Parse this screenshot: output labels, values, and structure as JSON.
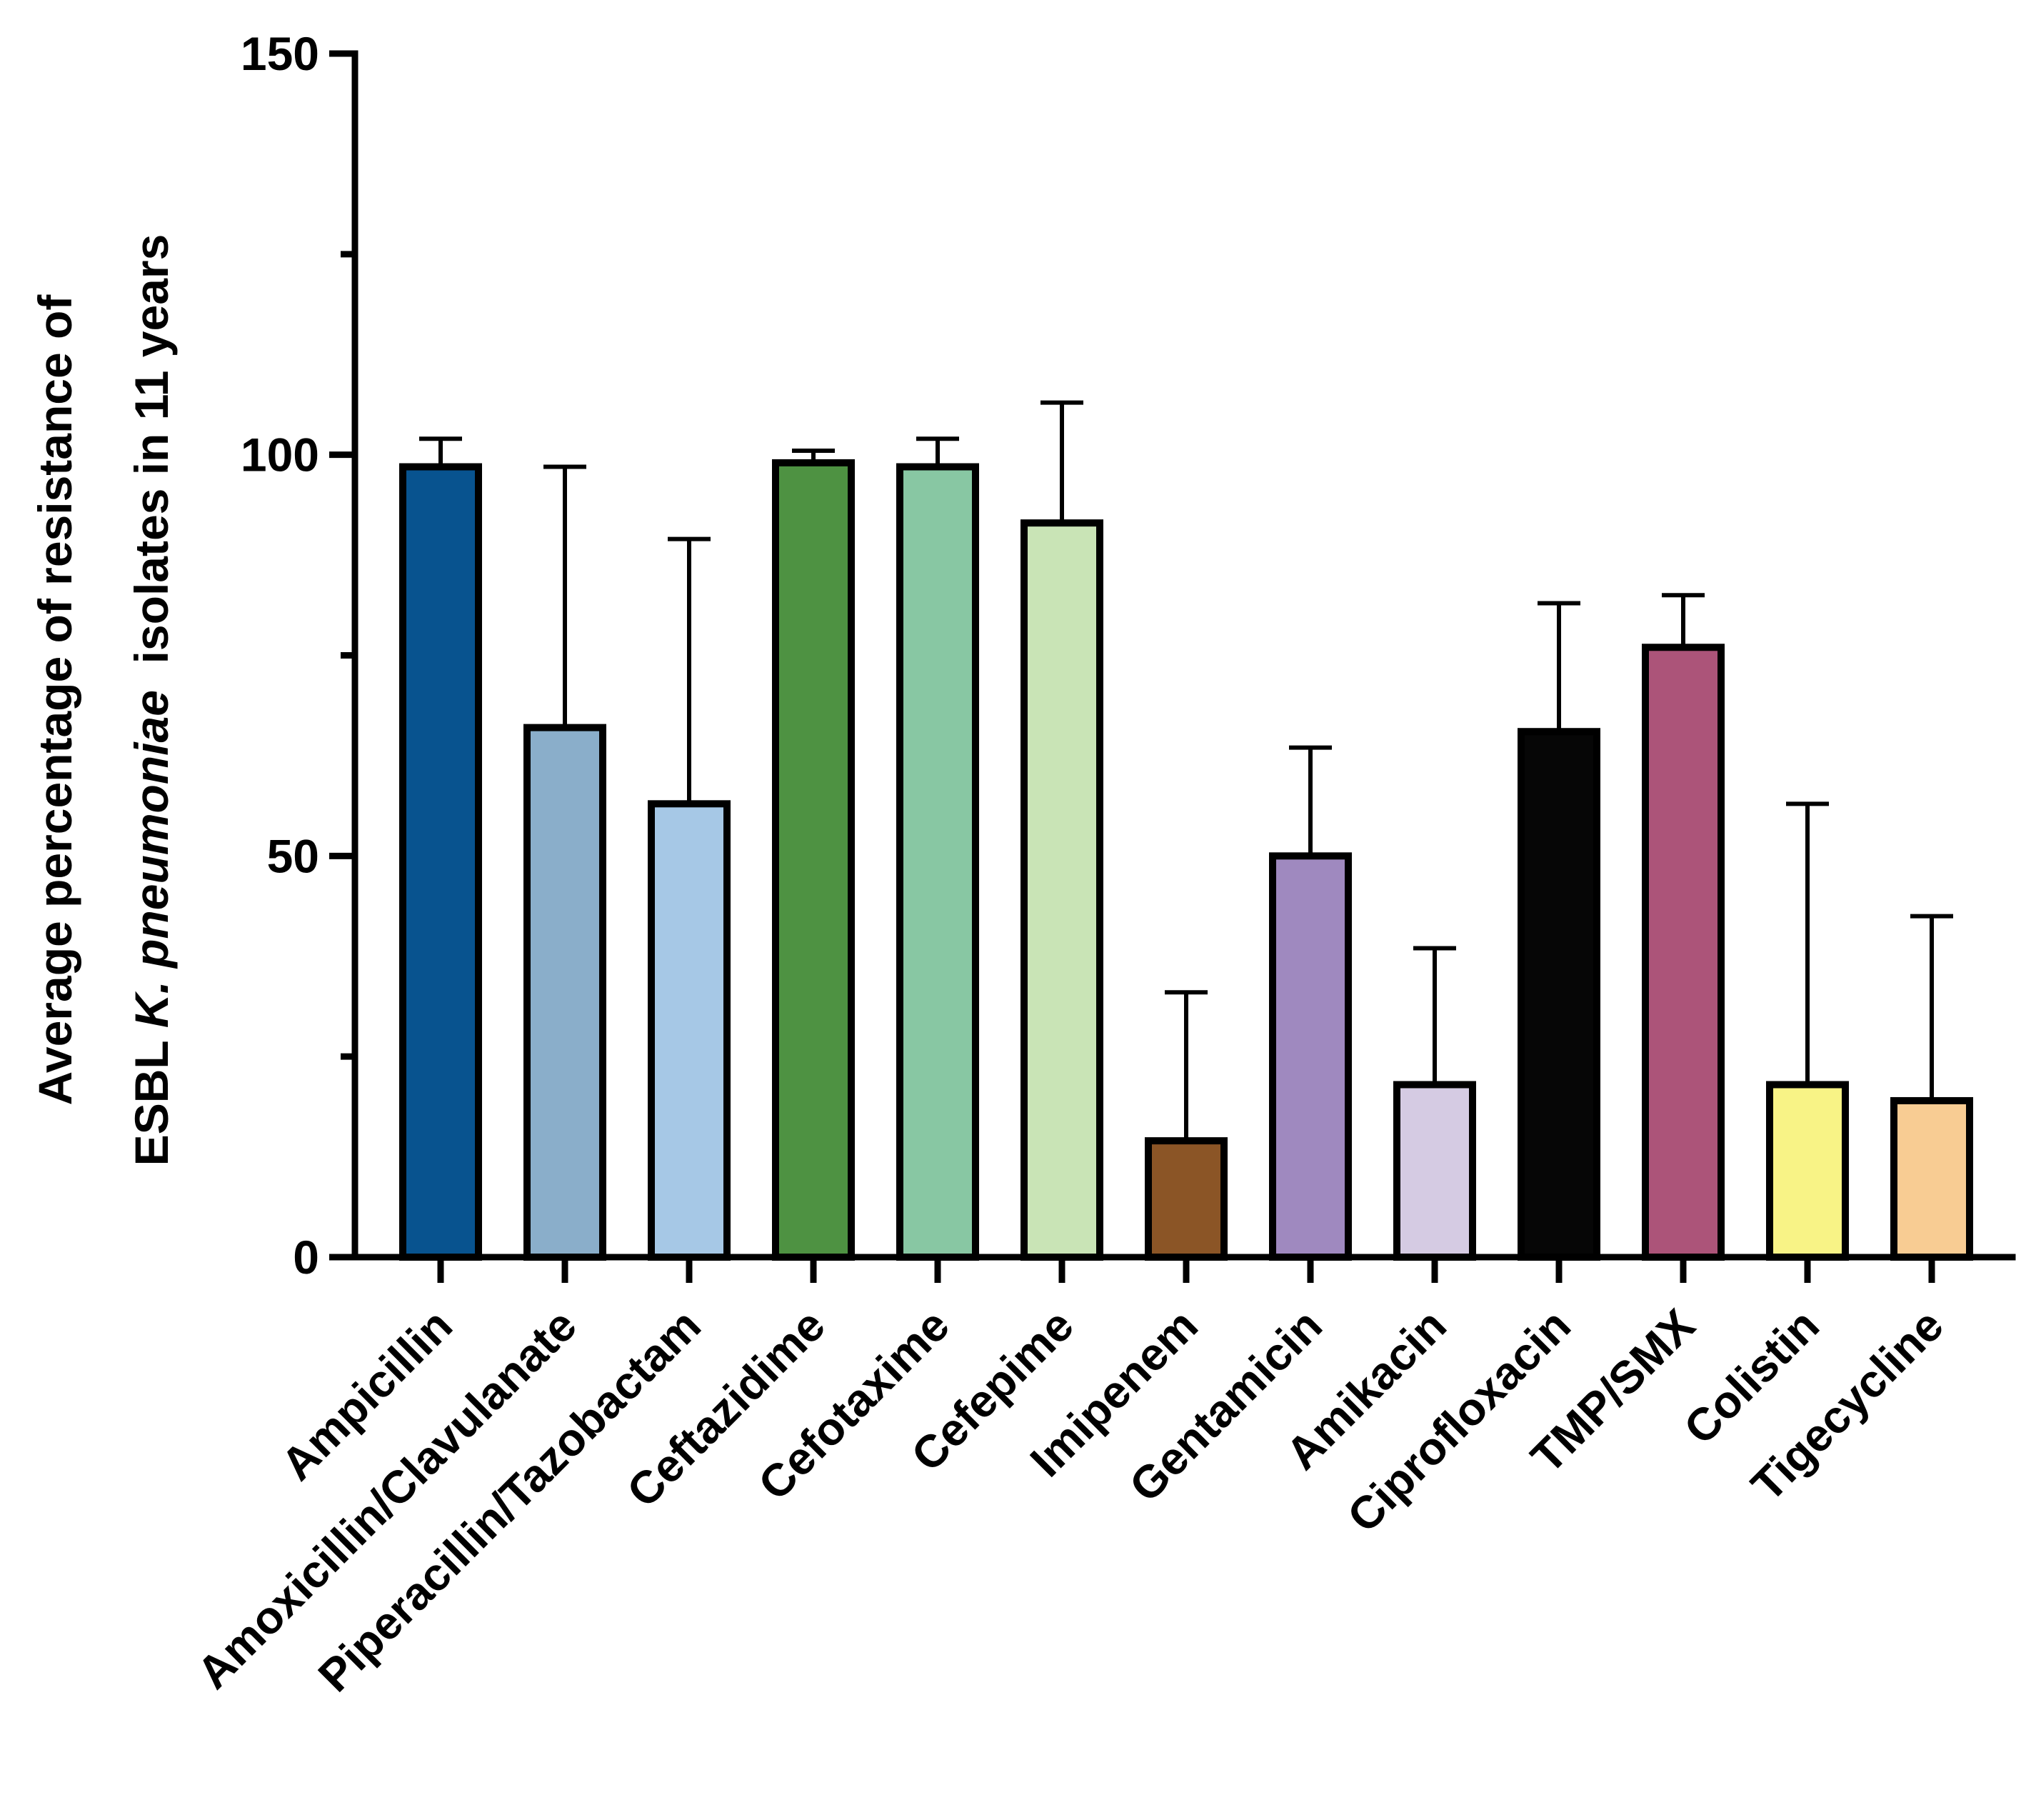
{
  "chart_data": {
    "type": "bar",
    "title": "",
    "xlabel": "",
    "ylabel": {
      "line1": "Average percentage of resistance of",
      "line2_prefix": "ESBL ",
      "line2_italic": "K. pneumoniae",
      "line2_suffix": "  isolates in 11 years"
    },
    "ylim": [
      0,
      150
    ],
    "yticks": [
      {
        "value": 0,
        "label": "0"
      },
      {
        "value": 50,
        "label": "50"
      },
      {
        "value": 100,
        "label": "100"
      },
      {
        "value": 150,
        "label": "150"
      }
    ],
    "minor_yticks": [
      25,
      75,
      125
    ],
    "grid": false,
    "legend": "none",
    "categories": [
      "Ampicillin",
      "Amoxicillin/Clavulanate",
      "Piperacillin/Tazobactam",
      "Ceftazidime",
      "Cefotaxime",
      "Cefepime",
      "Imipenem",
      "Gentamicin",
      "Amikacin",
      "Ciprofloxacin",
      "TMP/SMX",
      "Colistin",
      "Tigecycline"
    ],
    "values": [
      98.5,
      66,
      56.5,
      99,
      98.5,
      91.5,
      14.5,
      50,
      21.5,
      65.5,
      76,
      21.5,
      19.5
    ],
    "error_upper": [
      102,
      98.5,
      89.5,
      100.5,
      102,
      106.5,
      33,
      63.5,
      38.5,
      81.5,
      82.5,
      56.5,
      42.5
    ],
    "colors": [
      "#08538f",
      "#8aaeca",
      "#a6c8e6",
      "#4e9242",
      "#88c7a3",
      "#c9e4b6",
      "#8b5526",
      "#9f89bf",
      "#d5cbe3",
      "#060606",
      "#ac5479",
      "#f8f386",
      "#f8cc93"
    ]
  }
}
